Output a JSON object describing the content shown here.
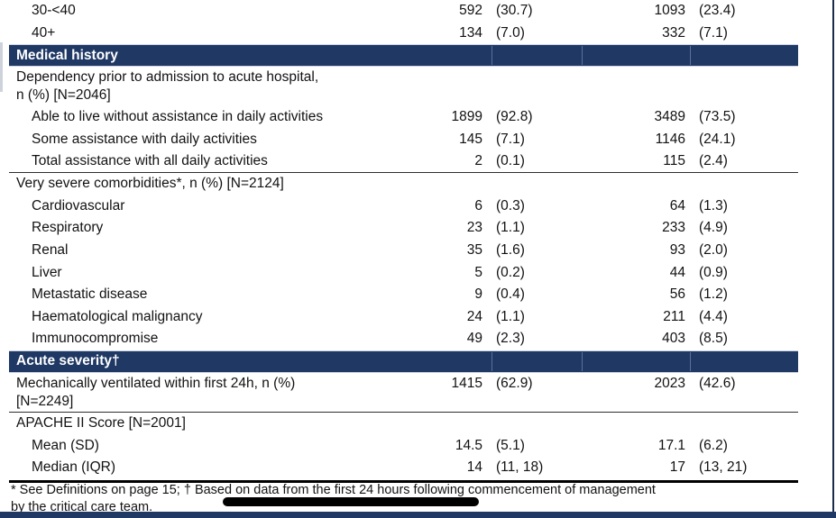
{
  "colors": {
    "section_band": "#1f3864",
    "bottom_bar": "#1f3864",
    "redaction": "#000000",
    "text": "#121212"
  },
  "table": {
    "rows": [
      {
        "type": "data",
        "indent": 2,
        "label": "30-<40",
        "n1": "592",
        "p1": "(30.7)",
        "n2": "1093",
        "p2": "(23.4)"
      },
      {
        "type": "data",
        "indent": 2,
        "label": "40+",
        "n1": "134",
        "p1": "(7.0)",
        "n2": "332",
        "p2": "(7.1)"
      },
      {
        "type": "band",
        "label": "Medical history"
      },
      {
        "type": "data",
        "indent": 1,
        "label": "Dependency prior to admission to acute hospital,",
        "label2": "n (%) [N=2046]"
      },
      {
        "type": "data",
        "indent": 2,
        "label": "Able to live without assistance in daily activities",
        "n1": "1899",
        "p1": "(92.8)",
        "n2": "3489",
        "p2": "(73.5)"
      },
      {
        "type": "data",
        "indent": 2,
        "label": "Some assistance with daily activities",
        "n1": "145",
        "p1": "(7.1)",
        "n2": "1146",
        "p2": "(24.1)"
      },
      {
        "type": "data",
        "indent": 2,
        "label": "Total assistance with all daily activities",
        "n1": "2",
        "p1": "(0.1)",
        "n2": "115",
        "p2": "(2.4)",
        "rule_after": true
      },
      {
        "type": "data",
        "indent": 1,
        "label": "Very severe comorbidities*, n (%) [N=2124]"
      },
      {
        "type": "data",
        "indent": 2,
        "label": "Cardiovascular",
        "n1": "6",
        "p1": "(0.3)",
        "n2": "64",
        "p2": "(1.3)"
      },
      {
        "type": "data",
        "indent": 2,
        "label": "Respiratory",
        "n1": "23",
        "p1": "(1.1)",
        "n2": "233",
        "p2": "(4.9)"
      },
      {
        "type": "data",
        "indent": 2,
        "label": "Renal",
        "n1": "35",
        "p1": "(1.6)",
        "n2": "93",
        "p2": "(2.0)"
      },
      {
        "type": "data",
        "indent": 2,
        "label": "Liver",
        "n1": "5",
        "p1": "(0.2)",
        "n2": "44",
        "p2": "(0.9)"
      },
      {
        "type": "data",
        "indent": 2,
        "label": "Metastatic disease",
        "n1": "9",
        "p1": "(0.4)",
        "n2": "56",
        "p2": "(1.2)"
      },
      {
        "type": "data",
        "indent": 2,
        "label": "Haematological malignancy",
        "n1": "24",
        "p1": "(1.1)",
        "n2": "211",
        "p2": "(4.4)"
      },
      {
        "type": "data",
        "indent": 2,
        "label": "Immunocompromise",
        "n1": "49",
        "p1": "(2.3)",
        "n2": "403",
        "p2": "(8.5)"
      },
      {
        "type": "band",
        "label": "Acute severity†"
      },
      {
        "type": "data",
        "indent": 1,
        "label": "Mechanically ventilated within first 24h, n (%)",
        "label2": "[N=2249]",
        "n1": "1415",
        "p1": "(62.9)",
        "n2": "2023",
        "p2": "(42.6)",
        "rule_after": true
      },
      {
        "type": "data",
        "indent": 1,
        "label": "APACHE II Score [N=2001]"
      },
      {
        "type": "data",
        "indent": 2,
        "label": "Mean (SD)",
        "n1": "14.5",
        "p1": "(5.1)",
        "n2": "17.1",
        "p2": "(6.2)"
      },
      {
        "type": "data",
        "indent": 2,
        "label": "Median (IQR)",
        "n1": "14",
        "p1": "(11, 18)",
        "n2": "17",
        "p2": "(13, 21)"
      },
      {
        "type": "thick_rule"
      }
    ]
  },
  "footnote": {
    "line1": "* See Definitions on page 15; † Based on data from the first 24 hours following commencement of management",
    "line2": "by the critical care team."
  }
}
